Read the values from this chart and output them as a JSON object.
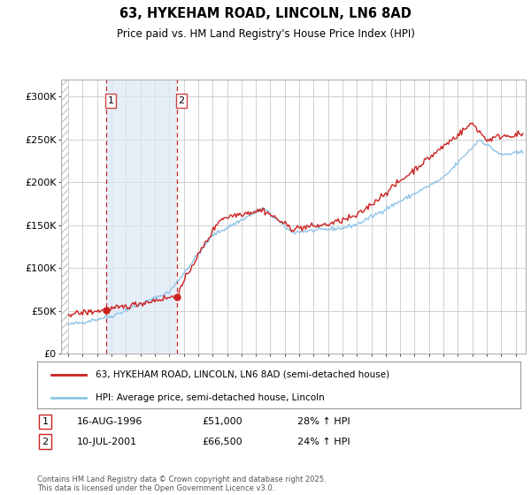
{
  "title": "63, HYKEHAM ROAD, LINCOLN, LN6 8AD",
  "subtitle": "Price paid vs. HM Land Registry's House Price Index (HPI)",
  "ylim": [
    0,
    320000
  ],
  "yticks": [
    0,
    50000,
    100000,
    150000,
    200000,
    250000,
    300000
  ],
  "ytick_labels": [
    "£0",
    "£50K",
    "£100K",
    "£150K",
    "£200K",
    "£250K",
    "£300K"
  ],
  "hpi_color": "#8ec4e8",
  "price_color": "#cc2222",
  "transaction1": {
    "date_label": "16-AUG-1996",
    "price": 51000,
    "hpi_pct": "28%",
    "marker_year": 1996.62
  },
  "transaction2": {
    "date_label": "10-JUL-2001",
    "price": 66500,
    "hpi_pct": "24%",
    "marker_year": 2001.52
  },
  "legend_label_price": "63, HYKEHAM ROAD, LINCOLN, LN6 8AD (semi-detached house)",
  "legend_label_hpi": "HPI: Average price, semi-detached house, Lincoln",
  "footnote": "Contains HM Land Registry data © Crown copyright and database right 2025.\nThis data is licensed under the Open Government Licence v3.0.",
  "hatch_color": "#c8c8c8",
  "shade_color": "#dce8f5",
  "xlim_start": 1993.5,
  "xlim_end": 2025.7,
  "xtick_start": 1994,
  "xtick_end": 2025
}
